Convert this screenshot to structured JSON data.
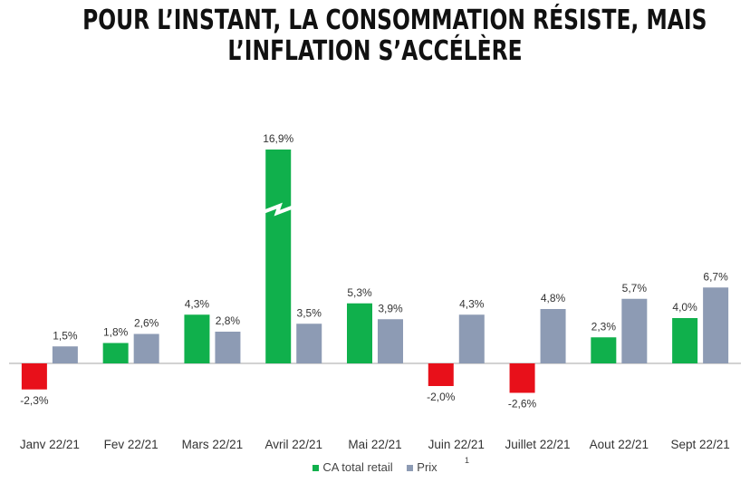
{
  "title_lines": [
    "POUR L’INSTANT, LA CONSOMMATION RÉSISTE, MAIS",
    "L’INFLATION S’ACCÉLÈRE"
  ],
  "colors": {
    "ca": "#10b04c",
    "neg": "#e8101a",
    "prix": "#8d9bb4",
    "axis": "#c4c4c4",
    "text": "#333333"
  },
  "footnote": "1",
  "chart_data": {
    "type": "bar",
    "categories": [
      "Janv 22/21",
      "Fev    22/21",
      "Mars 22/21",
      "Avril 22/21",
      "Mai   22/21",
      "Juin   22/21",
      "Juillet 22/21",
      "Aout 22/21",
      "Sept 22/21"
    ],
    "series": [
      {
        "name": "CA total retail",
        "values": [
          -2.3,
          1.8,
          4.3,
          16.9,
          5.3,
          -2.0,
          -2.6,
          2.3,
          4.0
        ],
        "labels": [
          "-2,3%",
          "1,8%",
          "4,3%",
          "16,9%",
          "5,3%",
          "-2,0%",
          "-2,6%",
          "2,3%",
          "4,0%"
        ]
      },
      {
        "name": "Prix",
        "values": [
          1.5,
          2.6,
          2.8,
          3.5,
          3.9,
          4.3,
          4.8,
          5.7,
          6.7
        ],
        "labels": [
          "1,5%",
          "2,6%",
          "2,8%",
          "3,5%",
          "3,9%",
          "4,3%",
          "4,8%",
          "5,7%",
          "6,7%"
        ]
      }
    ],
    "axis_break": {
      "category": "Avril 22/21",
      "series": "CA total retail"
    },
    "legend_position": "bottom",
    "grid": false
  }
}
